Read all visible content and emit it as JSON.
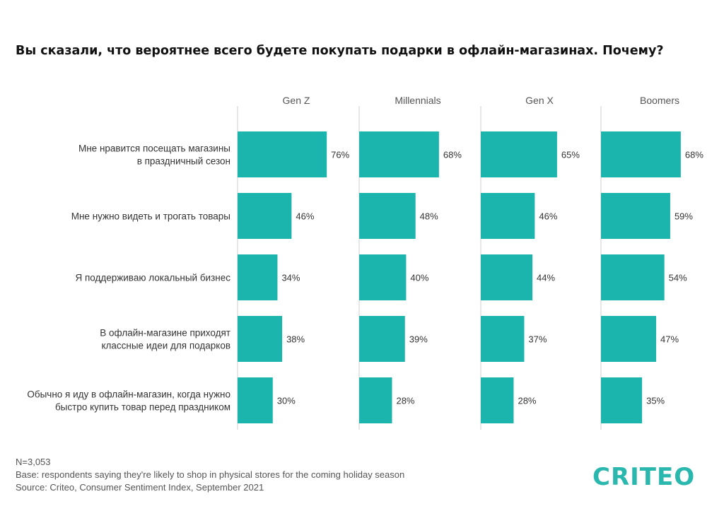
{
  "title": "Вы сказали, что вероятнее всего будете покупать подарки в офлайн-магазинах. Почему?",
  "colors": {
    "bar": "#1cb5ad",
    "axis": "#cfcfcf",
    "text": "#333333",
    "brand": "#2ab7ad"
  },
  "chart_data": {
    "type": "bar",
    "orientation": "horizontal",
    "categories": [
      [
        "Мне нравится посещать магазины",
        "в праздничный сезон"
      ],
      [
        "Мне нужно видеть и трогать товары"
      ],
      [
        "Я поддерживаю локальный бизнес"
      ],
      [
        "В офлайн-магазине приходят",
        "классные идеи для подарков"
      ],
      [
        "Обычно я иду в офлайн-магазин, когда нужно",
        "быстро купить товар перед праздником"
      ]
    ],
    "series": [
      {
        "name": "Gen Z",
        "values": [
          76,
          46,
          34,
          38,
          30
        ],
        "labels": [
          "76%",
          "46%",
          "34%",
          "38%",
          "30%"
        ]
      },
      {
        "name": "Millennials",
        "values": [
          68,
          48,
          40,
          39,
          28
        ],
        "labels": [
          "68%",
          "48%",
          "40%",
          "39%",
          "28%"
        ]
      },
      {
        "name": "Gen X",
        "values": [
          65,
          46,
          44,
          37,
          28
        ],
        "labels": [
          "65%",
          "46%",
          "44%",
          "37%",
          "28%"
        ]
      },
      {
        "name": "Boomers",
        "values": [
          68,
          59,
          54,
          47,
          35
        ],
        "labels": [
          "68%",
          "59%",
          "54%",
          "47%",
          "35%"
        ]
      }
    ],
    "xlim": [
      0,
      100
    ],
    "unit": "%",
    "grid": true
  },
  "footer": {
    "n": "N=3,053",
    "base": "Base: respondents saying they're likely to shop in physical stores for the coming holiday season",
    "source": "Source: Criteo, Consumer Sentiment Index, September 2021"
  },
  "logo": {
    "text": "CRITEO"
  }
}
